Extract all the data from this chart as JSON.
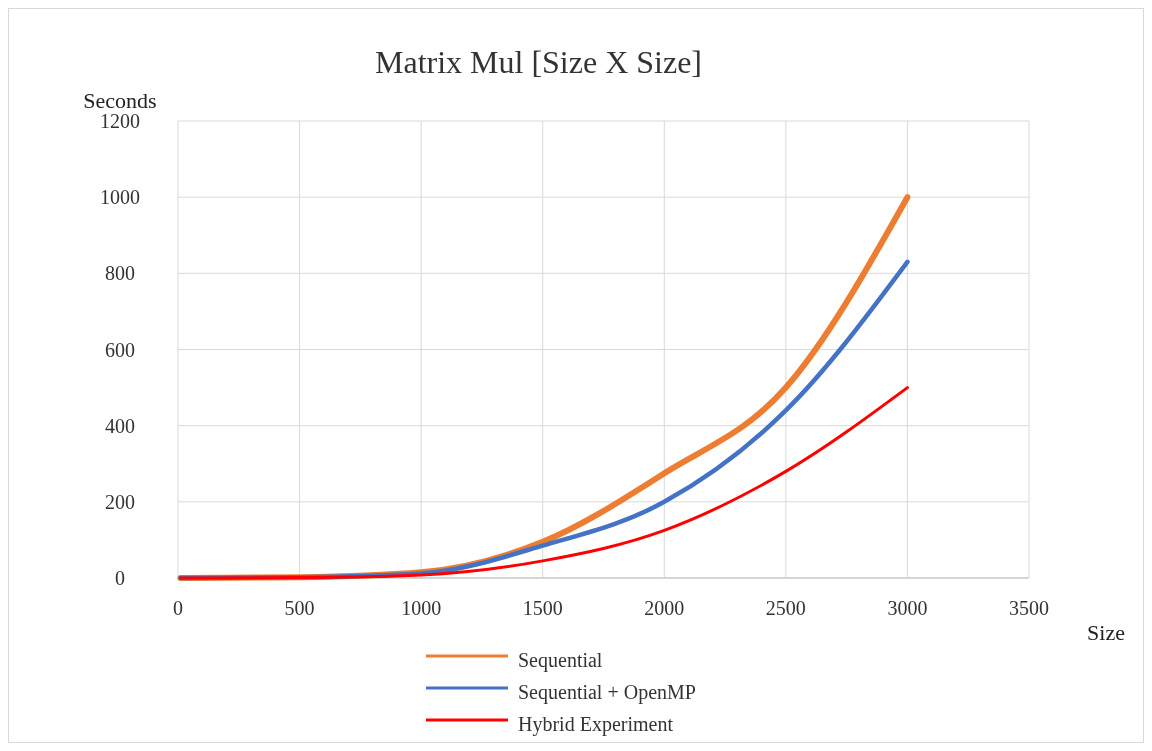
{
  "chart_data": {
    "type": "line",
    "title": "Matrix Mul [Size X Size]",
    "xlabel": "Size",
    "ylabel": "Seconds",
    "x": [
      10,
      500,
      1000,
      1500,
      2000,
      2500,
      3000
    ],
    "series": [
      {
        "name": "Sequential",
        "color": "#ed7d31",
        "values": [
          0,
          2,
          15,
          95,
          275,
          500,
          1000
        ]
      },
      {
        "name": "Sequential + OpenMP",
        "color": "#4472c4",
        "values": [
          0,
          2,
          12,
          85,
          200,
          440,
          830
        ]
      },
      {
        "name": "Hybrid Experiment",
        "color": "#ff0000",
        "values": [
          0,
          1,
          8,
          45,
          125,
          280,
          500
        ]
      }
    ],
    "xlim": [
      0,
      3500
    ],
    "xticks": [
      0,
      500,
      1000,
      1500,
      2000,
      2500,
      3000,
      3500
    ],
    "ylim": [
      0,
      1200
    ],
    "yticks": [
      0,
      200,
      400,
      600,
      800,
      1000,
      1200
    ],
    "grid": true,
    "legend": "bottom",
    "marker": "none",
    "line_style": "solid"
  }
}
